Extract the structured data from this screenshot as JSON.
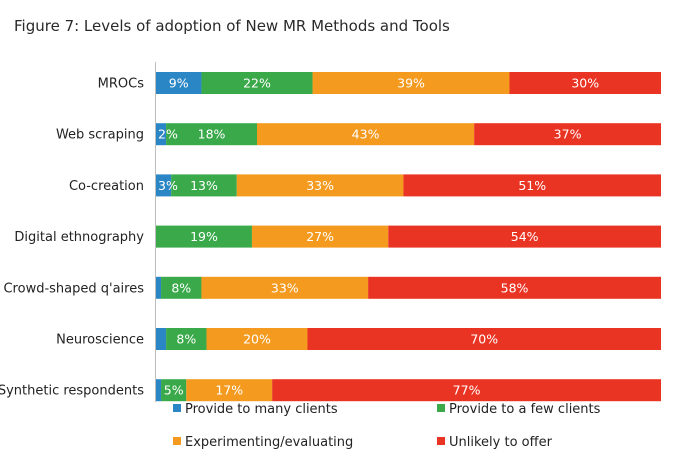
{
  "title": "Figure 7: Levels of adoption of New MR Methods and Tools",
  "chart_data": {
    "type": "bar",
    "orientation": "horizontal",
    "stacked": true,
    "title": "Figure 7: Levels of adoption of New MR Methods and Tools",
    "categories": [
      "MROCs",
      "Web scraping",
      "Co-creation",
      "Digital ethnography",
      "Crowd-shaped q'aires",
      "Neuroscience",
      "Synthetic respondents"
    ],
    "unit": "%",
    "xlim": [
      0,
      100
    ],
    "series": [
      {
        "name": "Provide to many clients",
        "color": "#2b86c5",
        "values": [
          9,
          2,
          3,
          0,
          1,
          2,
          1
        ],
        "labels": [
          "9%",
          "2%",
          "3%",
          "",
          "",
          "",
          ""
        ]
      },
      {
        "name": "Provide to a few clients",
        "color": "#3aa94a",
        "values": [
          22,
          18,
          13,
          19,
          8,
          8,
          5
        ],
        "labels": [
          "22%",
          "18%",
          "13%",
          "19%",
          "8%",
          "8%",
          "5%"
        ]
      },
      {
        "name": "Experimenting/evaluating",
        "color": "#f39a1f",
        "values": [
          39,
          43,
          33,
          27,
          33,
          20,
          17
        ],
        "labels": [
          "39%",
          "43%",
          "33%",
          "27%",
          "33%",
          "20%",
          "17%"
        ]
      },
      {
        "name": "Unlikely to offer",
        "color": "#ea3423",
        "values": [
          30,
          37,
          51,
          54,
          58,
          70,
          77
        ],
        "labels": [
          "30%",
          "37%",
          "51%",
          "54%",
          "58%",
          "70%",
          "77%"
        ]
      }
    ],
    "legend_position": "bottom"
  }
}
